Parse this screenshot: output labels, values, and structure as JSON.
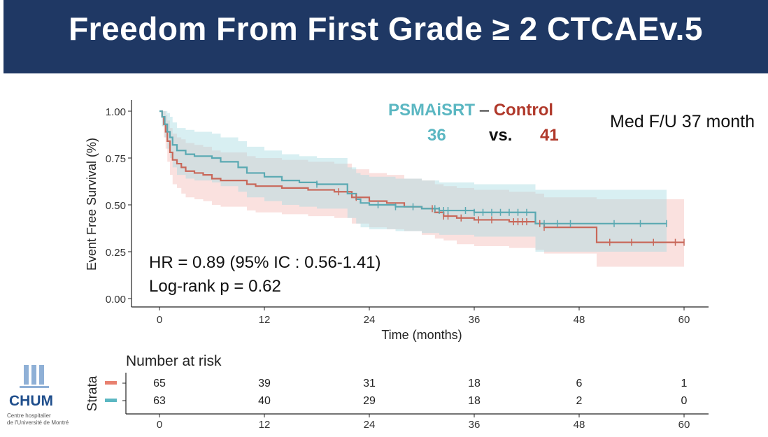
{
  "slide": {
    "title": "Freedom From First Grade ≥ 2 CTCAEv.5"
  },
  "legend": {
    "group_a": "PSMAiSRT",
    "dash": "–",
    "group_b": "Control",
    "n_a": "36",
    "vs": "vs.",
    "n_b": "41",
    "color_a": "#5bb7c2",
    "color_b": "#b0392b"
  },
  "note": {
    "med_fu": "Med F/U 37 month"
  },
  "stats": {
    "hr": "HR = 0.89 (95% IC : 0.56-1.41)",
    "logrank": "Log-rank p = 0.62"
  },
  "logo": {
    "name": "CHUM",
    "line1": "Centre hospitalier",
    "line2": "de l'Université de Montré"
  },
  "risk_table": {
    "title": "Number at risk",
    "ylabel": "Strata",
    "times": [
      "0",
      "12",
      "24",
      "36",
      "48",
      "60"
    ],
    "rows": [
      {
        "name": "Control",
        "color": "#e8806f",
        "values": [
          "65",
          "39",
          "31",
          "18",
          "6",
          "1"
        ]
      },
      {
        "name": "PSMAiSRT",
        "color": "#5bb7c2",
        "values": [
          "63",
          "40",
          "29",
          "18",
          "2",
          "0"
        ]
      }
    ]
  },
  "chart_data": {
    "type": "line",
    "title": "",
    "xlabel": "Time (months)",
    "ylabel": "Event Free Survival (%)",
    "xlim": [
      0,
      60
    ],
    "ylim": [
      0,
      1
    ],
    "xticks": [
      "0",
      "12",
      "24",
      "36",
      "48",
      "60"
    ],
    "yticks": [
      "0.00",
      "0.25",
      "0.50",
      "0.75",
      "1.00"
    ],
    "series": [
      {
        "name": "Control",
        "line_color": "#c8685a",
        "band_color": "#f4bdb7",
        "x": [
          0,
          0.3,
          0.5,
          0.7,
          0.9,
          1.2,
          1.5,
          2.0,
          2.5,
          3.0,
          4.0,
          5.0,
          6.0,
          7.0,
          9.0,
          10.0,
          11.0,
          12.0,
          14.0,
          17.0,
          20.0,
          22.0,
          24.0,
          26.0,
          28.0,
          30.0,
          31.5,
          32.5,
          34.0,
          36.0,
          40.0,
          43.0,
          44.0,
          50.0,
          60.0
        ],
        "y": [
          1.0,
          0.97,
          0.93,
          0.89,
          0.84,
          0.78,
          0.74,
          0.72,
          0.7,
          0.68,
          0.67,
          0.66,
          0.64,
          0.63,
          0.63,
          0.61,
          0.6,
          0.6,
          0.59,
          0.58,
          0.57,
          0.54,
          0.52,
          0.51,
          0.49,
          0.48,
          0.46,
          0.44,
          0.43,
          0.42,
          0.41,
          0.4,
          0.38,
          0.3,
          0.3
        ],
        "lower": [
          1.0,
          0.92,
          0.86,
          0.8,
          0.73,
          0.66,
          0.61,
          0.59,
          0.56,
          0.54,
          0.53,
          0.52,
          0.5,
          0.49,
          0.49,
          0.47,
          0.46,
          0.46,
          0.45,
          0.44,
          0.43,
          0.4,
          0.38,
          0.37,
          0.36,
          0.34,
          0.32,
          0.31,
          0.29,
          0.28,
          0.27,
          0.26,
          0.24,
          0.17,
          0.17
        ],
        "upper": [
          1.0,
          1.0,
          1.0,
          0.98,
          0.95,
          0.91,
          0.88,
          0.86,
          0.85,
          0.83,
          0.82,
          0.81,
          0.79,
          0.78,
          0.78,
          0.76,
          0.75,
          0.75,
          0.74,
          0.73,
          0.72,
          0.69,
          0.67,
          0.66,
          0.64,
          0.63,
          0.61,
          0.6,
          0.59,
          0.58,
          0.57,
          0.56,
          0.54,
          0.53,
          0.53
        ],
        "censor_x": [
          20.5,
          22.5,
          31.2,
          32.5,
          33.0,
          34.5,
          36.5,
          38.0,
          40.5,
          41.0,
          41.5,
          42.0,
          43.5,
          44.0,
          51.5,
          54.0,
          56.5,
          59.0,
          60.0
        ]
      },
      {
        "name": "PSMAiSRT",
        "line_color": "#5aa9b2",
        "band_color": "#a9dbe2",
        "x": [
          0,
          0.3,
          0.6,
          0.9,
          1.2,
          1.5,
          2.0,
          3.0,
          4.0,
          6.0,
          7.0,
          8.0,
          9.0,
          10.0,
          12.0,
          14.0,
          16.0,
          18.0,
          21.5,
          22.5,
          23.0,
          24.0,
          27.0,
          30.0,
          32.0,
          34.0,
          36.0,
          40.0,
          43.0,
          58.0
        ],
        "y": [
          1.0,
          0.97,
          0.93,
          0.89,
          0.86,
          0.82,
          0.79,
          0.77,
          0.76,
          0.75,
          0.73,
          0.73,
          0.7,
          0.67,
          0.65,
          0.63,
          0.62,
          0.61,
          0.56,
          0.53,
          0.51,
          0.5,
          0.49,
          0.48,
          0.47,
          0.47,
          0.46,
          0.46,
          0.4,
          0.4
        ],
        "lower": [
          1.0,
          0.92,
          0.86,
          0.8,
          0.75,
          0.7,
          0.66,
          0.64,
          0.63,
          0.62,
          0.6,
          0.6,
          0.57,
          0.54,
          0.52,
          0.5,
          0.49,
          0.48,
          0.43,
          0.4,
          0.38,
          0.37,
          0.36,
          0.35,
          0.34,
          0.34,
          0.33,
          0.33,
          0.25,
          0.25
        ],
        "upper": [
          1.0,
          1.0,
          1.0,
          0.99,
          0.97,
          0.94,
          0.91,
          0.9,
          0.89,
          0.88,
          0.86,
          0.86,
          0.84,
          0.81,
          0.79,
          0.77,
          0.76,
          0.75,
          0.7,
          0.67,
          0.66,
          0.65,
          0.64,
          0.63,
          0.62,
          0.62,
          0.61,
          0.61,
          0.58,
          0.58
        ],
        "censor_x": [
          18.0,
          25.0,
          27.0,
          29.0,
          31.5,
          32.0,
          32.5,
          33.0,
          35.0,
          36.0,
          37.0,
          38.0,
          39.0,
          40.0,
          41.0,
          42.0,
          44.0,
          45.5,
          47.0,
          52.0,
          55.0,
          58.0
        ]
      }
    ]
  }
}
